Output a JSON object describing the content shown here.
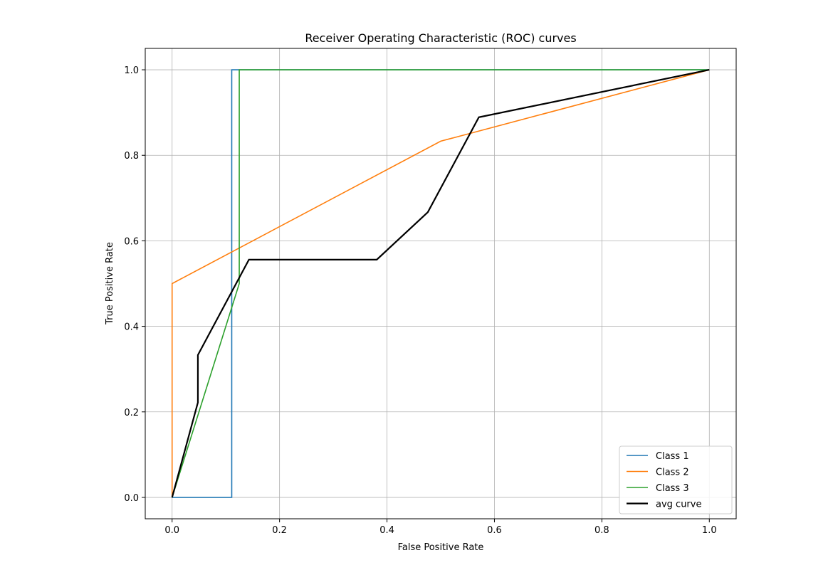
{
  "chart_data": {
    "type": "line",
    "title": "Receiver Operating Characteristic (ROC) curves",
    "xlabel": "False Positive Rate",
    "ylabel": "True Positive Rate",
    "xlim": [
      -0.05,
      1.05
    ],
    "ylim": [
      -0.05,
      1.05
    ],
    "xticks": [
      0.0,
      0.2,
      0.4,
      0.6,
      0.8,
      1.0
    ],
    "yticks": [
      0.0,
      0.2,
      0.4,
      0.6,
      0.8,
      1.0
    ],
    "xtick_labels": [
      "0.0",
      "0.2",
      "0.4",
      "0.6",
      "0.8",
      "1.0"
    ],
    "ytick_labels": [
      "0.0",
      "0.2",
      "0.4",
      "0.6",
      "0.8",
      "1.0"
    ],
    "grid": true,
    "legend_position": "lower-right",
    "series": [
      {
        "name": "Class 1",
        "color": "#1f77b4",
        "x": [
          0.0,
          0.111,
          0.111,
          0.111,
          1.0
        ],
        "y": [
          0.0,
          0.0,
          1.0,
          1.0,
          1.0
        ]
      },
      {
        "name": "Class 2",
        "color": "#ff7f0e",
        "x": [
          0.0,
          0.0,
          0.5,
          1.0
        ],
        "y": [
          0.0,
          0.5,
          0.833,
          1.0
        ]
      },
      {
        "name": "Class 3",
        "color": "#2ca02c",
        "x": [
          0.0,
          0.125,
          0.125,
          1.0
        ],
        "y": [
          0.0,
          0.5,
          1.0,
          1.0
        ]
      },
      {
        "name": "avg curve",
        "color": "#000000",
        "x": [
          0.0,
          0.048,
          0.048,
          0.143,
          0.381,
          0.476,
          0.571,
          1.0
        ],
        "y": [
          0.0,
          0.222,
          0.333,
          0.556,
          0.556,
          0.667,
          0.889,
          1.0
        ]
      }
    ]
  }
}
